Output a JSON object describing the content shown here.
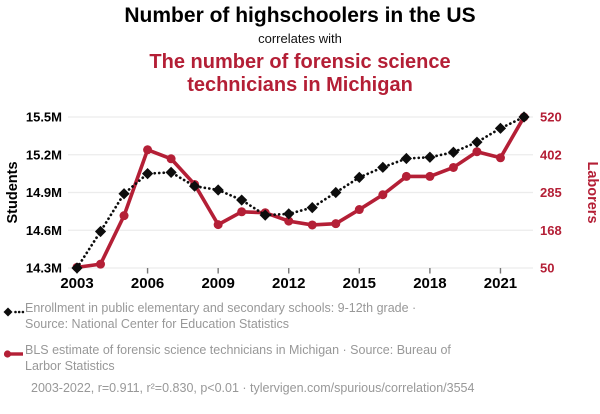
{
  "header": {
    "title": "Number of highschoolers in the US",
    "connector": "correlates with",
    "subtitle": "The number of forensic science technicians in Michigan",
    "subtitle_lines": [
      "The number of forensic science",
      "technicians in Michigan"
    ],
    "accent_color": "#b41f36"
  },
  "chart_data": {
    "type": "line",
    "x": [
      2003,
      2004,
      2005,
      2006,
      2007,
      2008,
      2009,
      2010,
      2011,
      2012,
      2013,
      2014,
      2015,
      2016,
      2017,
      2018,
      2019,
      2020,
      2021,
      2022
    ],
    "x_tick_labels": [
      2003,
      2006,
      2009,
      2012,
      2015,
      2018,
      2021
    ],
    "grid": true,
    "legend_position": "bottom",
    "left_axis": {
      "label": "Students",
      "unit": "millions of students",
      "min": 14.3,
      "max": 15.5,
      "tick_values": [
        14.3,
        14.6,
        14.9,
        15.2,
        15.5
      ],
      "tick_labels": [
        "14.3M",
        "14.6M",
        "14.9M",
        "15.2M",
        "15.5M"
      ],
      "color": "#000000"
    },
    "right_axis": {
      "label": "Laborers",
      "unit": "laborers",
      "min": 50,
      "max": 520,
      "tick_values": [
        50,
        168,
        285,
        402,
        520
      ],
      "tick_labels": [
        "50",
        "168",
        "285",
        "402",
        "520"
      ],
      "color": "#b41f36"
    },
    "series": [
      {
        "name": "Enrollment in public elementary and secondary schools: 9-12th grade",
        "axis": "left",
        "color": "#0d0d0d",
        "line_style": "dotted",
        "marker": "diamond",
        "values": [
          14.3,
          14.59,
          14.89,
          15.05,
          15.06,
          14.95,
          14.92,
          14.84,
          14.72,
          14.73,
          14.78,
          14.9,
          15.02,
          15.1,
          15.17,
          15.18,
          15.22,
          15.3,
          15.41,
          15.5
        ]
      },
      {
        "name": "BLS estimate of forensic science technicians in Michigan",
        "axis": "right",
        "color": "#b41f36",
        "line_style": "solid",
        "marker": "circle",
        "values": [
          52,
          62,
          213,
          418,
          390,
          310,
          185,
          225,
          222,
          196,
          184,
          188,
          232,
          278,
          335,
          335,
          363,
          412,
          393,
          520
        ]
      }
    ]
  },
  "legend": {
    "items": [
      {
        "marker": "black-diamond-dotted",
        "lines": [
          "Enrollment in public elementary and secondary schools: 9-12th grade ·",
          "Source: National Center for Education Statistics"
        ]
      },
      {
        "marker": "red-circle-solid",
        "lines": [
          "BLS estimate of forensic science technicians in Michigan · Source: Bureau of",
          "Larbor Statistics"
        ]
      }
    ]
  },
  "footer": {
    "stats": "2003-2022, r=0.911, r²=0.830, p<0.01 · tylervigen.com/spurious/correlation/3554"
  }
}
